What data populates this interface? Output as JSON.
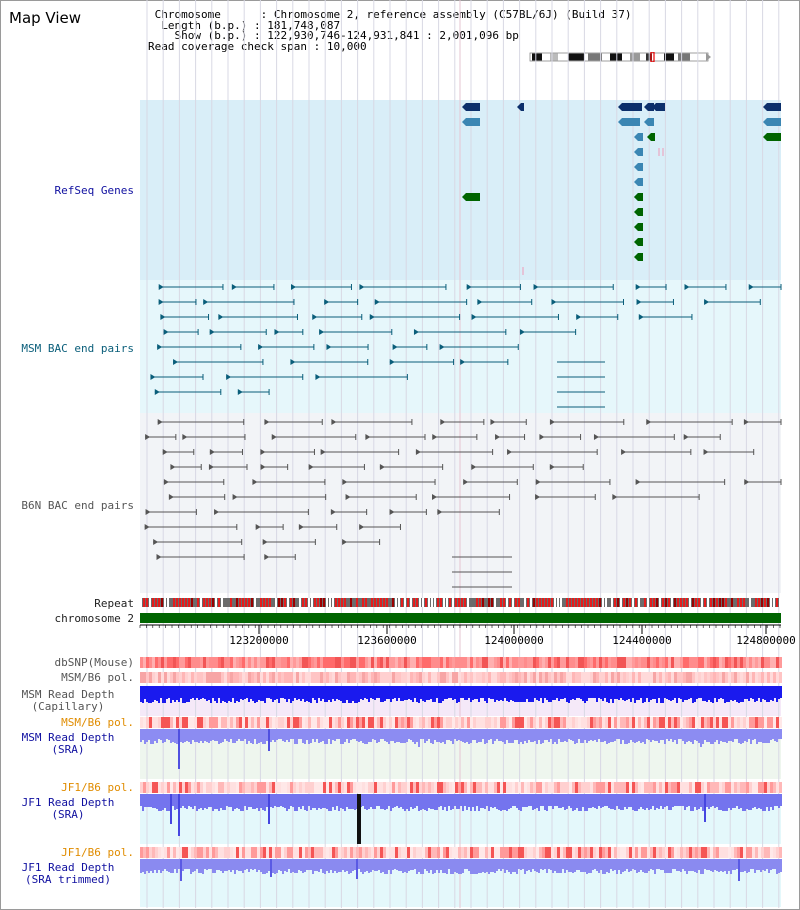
{
  "page": {
    "title": "Map View"
  },
  "header": {
    "chromosome_label": "Chromosome",
    "chromosome_value": "Chromosome 2, reference assembly (C57BL/6J) (Build 37)",
    "length_label": "Length (b.p.)",
    "length_value": "181,748,087",
    "show_label": "Show (b.p.)",
    "show_value": "122,930,746-124,931,841 : 2,001,096 bp",
    "coverage_label": "Read coverage check span",
    "coverage_value": "10,000"
  },
  "tracks": {
    "refseq": "RefSeq Genes",
    "msm_bac": "MSM BAC end pairs",
    "b6n_bac": "B6N BAC end pairs",
    "repeat": "Repeat",
    "chromosome": "chromosome 2",
    "dbsnp": "dbSNP(Mouse)",
    "msm_b6_pol_1": "MSM/B6 pol.",
    "msm_read_depth_cap": "MSM Read Depth",
    "msm_read_depth_cap_sub": "(Capillary)",
    "msm_b6_pol_2": "MSM/B6 pol.",
    "msm_read_depth_sra": "MSM Read Depth",
    "msm_read_depth_sra_sub": "(SRA)",
    "jf1_b6_pol_1": "JF1/B6 pol.",
    "jf1_read_depth_sra": "JF1 Read Depth",
    "jf1_read_depth_sra_sub": "(SRA)",
    "jf1_b6_pol_2": "JF1/B6 pol.",
    "jf1_read_depth_trim": "JF1 Read Depth",
    "jf1_read_depth_trim_sub": "(SRA trimmed)"
  },
  "axis": {
    "ticks": [
      "123200000",
      "123600000",
      "124000000",
      "124400000",
      "124800000"
    ]
  },
  "colors": {
    "refseq_bg": "#d9eef8",
    "msm_bg": "#e6f7fb",
    "b6n_bg": "#f2f4f7",
    "chromosome_bar": "#006400",
    "gene_dark": "#0c2f6b",
    "gene_mid": "#3b86b3",
    "gene_green": "#006400",
    "msm_line": "#0a5e7a",
    "b6n_line": "#555555"
  }
}
